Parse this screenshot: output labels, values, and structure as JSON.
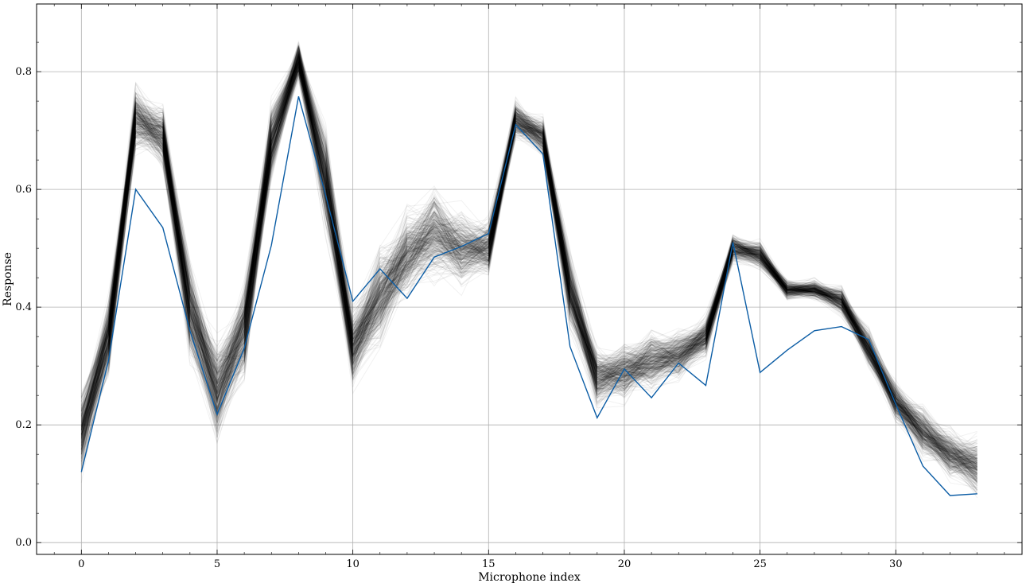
{
  "chart_data": {
    "type": "line",
    "title": "",
    "xlabel": "Microphone index",
    "ylabel": "Response",
    "xlim": [
      -1.65,
      34.65
    ],
    "ylim": [
      -0.02,
      0.915
    ],
    "xticks": [
      0,
      5,
      10,
      15,
      20,
      25,
      30
    ],
    "yticks": [
      0.0,
      0.2,
      0.4,
      0.6,
      0.8
    ],
    "grid": true,
    "ensemble": {
      "description_count": 400,
      "color": "#000000",
      "x": [
        0,
        1,
        2,
        3,
        4,
        5,
        6,
        7,
        8,
        9,
        10,
        11,
        12,
        13,
        14,
        15,
        16,
        17,
        18,
        19,
        20,
        21,
        22,
        23,
        24,
        25,
        26,
        27,
        28,
        29,
        30,
        31,
        32,
        33
      ],
      "mean": [
        0.19,
        0.35,
        0.72,
        0.69,
        0.4,
        0.26,
        0.36,
        0.68,
        0.82,
        0.62,
        0.33,
        0.42,
        0.49,
        0.53,
        0.5,
        0.5,
        0.72,
        0.69,
        0.43,
        0.28,
        0.29,
        0.31,
        0.32,
        0.35,
        0.5,
        0.49,
        0.43,
        0.43,
        0.41,
        0.33,
        0.24,
        0.19,
        0.15,
        0.13
      ],
      "spread": [
        0.045,
        0.04,
        0.035,
        0.03,
        0.05,
        0.05,
        0.05,
        0.04,
        0.02,
        0.05,
        0.04,
        0.05,
        0.045,
        0.045,
        0.04,
        0.03,
        0.02,
        0.02,
        0.04,
        0.03,
        0.03,
        0.03,
        0.025,
        0.02,
        0.015,
        0.015,
        0.01,
        0.01,
        0.015,
        0.02,
        0.02,
        0.025,
        0.025,
        0.03
      ]
    },
    "series": [
      {
        "color": "#0C5DA5",
        "x": [
          0,
          1,
          2,
          3,
          4,
          5,
          6,
          7,
          8,
          9,
          10,
          11,
          12,
          13,
          14,
          15,
          16,
          17,
          18,
          19,
          20,
          21,
          22,
          23,
          24,
          25,
          26,
          27,
          28,
          29,
          30,
          31,
          32,
          33
        ],
        "values": [
          0.12,
          0.31,
          0.6,
          0.535,
          0.36,
          0.218,
          0.33,
          0.505,
          0.758,
          0.59,
          0.41,
          0.465,
          0.415,
          0.485,
          0.503,
          0.525,
          0.71,
          0.66,
          0.333,
          0.212,
          0.295,
          0.246,
          0.305,
          0.267,
          0.51,
          0.289,
          0.327,
          0.36,
          0.367,
          0.345,
          0.235,
          0.13,
          0.08,
          0.083
        ]
      }
    ]
  }
}
